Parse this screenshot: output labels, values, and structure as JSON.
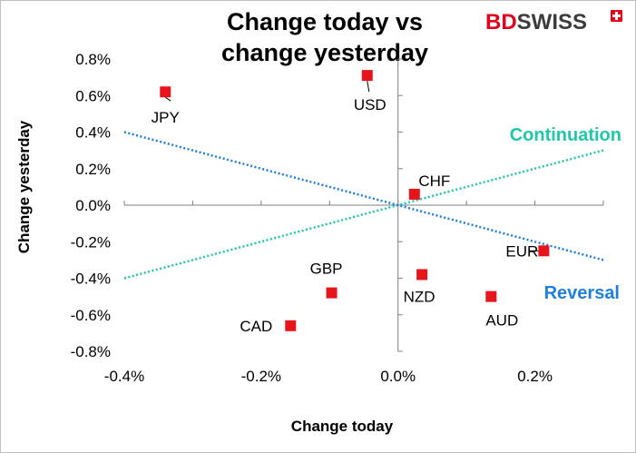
{
  "brand": {
    "name_part1": "BD",
    "name_part2": "SWISS",
    "color_part1": "#e2001a",
    "color_part2": "#3c3c3c",
    "flag_color": "#e2001a"
  },
  "chart_data": {
    "type": "scatter",
    "title": [
      "Change today vs",
      "change yesterday"
    ],
    "xlabel": "Change today",
    "ylabel": "Change yesterday",
    "xlim": [
      -0.4,
      0.3
    ],
    "ylim": [
      -0.8,
      0.8
    ],
    "x_ticks": [
      -0.4,
      -0.2,
      0.0,
      0.2
    ],
    "x_tick_labels": [
      "-0.4%",
      "-0.2%",
      "0.0%",
      "0.2%"
    ],
    "y_ticks": [
      0.8,
      0.6,
      0.4,
      0.2,
      0.0,
      -0.2,
      -0.4,
      -0.6,
      -0.8
    ],
    "y_tick_labels": [
      "0.8%",
      "0.6%",
      "0.4%",
      "0.2%",
      "0.0%",
      "-0.2%",
      "-0.4%",
      "-0.6%",
      "-0.8%"
    ],
    "grid": false,
    "marker_color": "#e8141b",
    "points": [
      {
        "label": "JPY",
        "x": -0.34,
        "y": 0.62
      },
      {
        "label": "USD",
        "x": -0.045,
        "y": 0.71
      },
      {
        "label": "CHF",
        "x": 0.024,
        "y": 0.06
      },
      {
        "label": "EUR",
        "x": 0.213,
        "y": -0.25
      },
      {
        "label": "NZD",
        "x": 0.035,
        "y": -0.38
      },
      {
        "label": "AUD",
        "x": 0.136,
        "y": -0.5
      },
      {
        "label": "GBP",
        "x": -0.097,
        "y": -0.48
      },
      {
        "label": "CAD",
        "x": -0.157,
        "y": -0.66
      }
    ],
    "lines": [
      {
        "name": "Continuation",
        "x": [
          -0.4,
          0.3
        ],
        "y": [
          -0.4,
          0.3
        ],
        "color": "#1ec8a8",
        "style": "dotted"
      },
      {
        "name": "Reversal",
        "x": [
          -0.4,
          0.3
        ],
        "y": [
          0.4,
          -0.3
        ],
        "color": "#1f7fe0",
        "style": "dotted"
      }
    ]
  }
}
